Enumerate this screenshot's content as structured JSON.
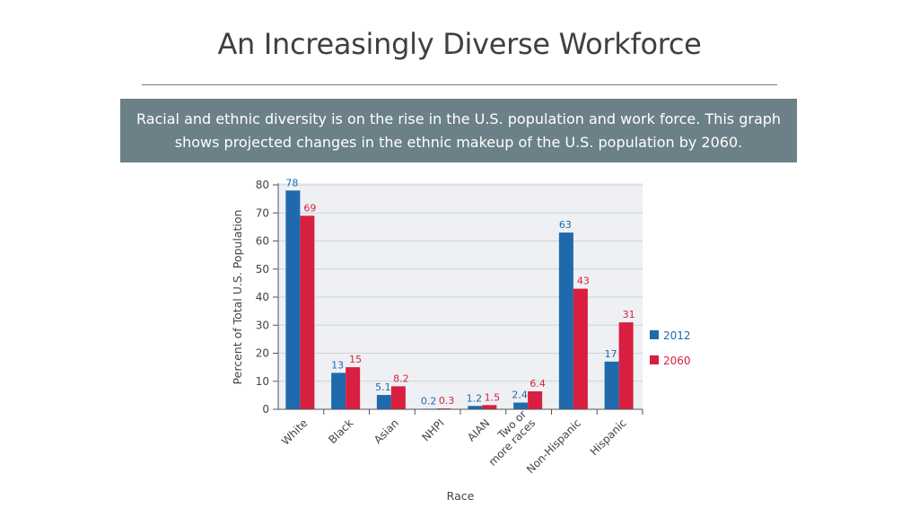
{
  "slide": {
    "title": "An Increasingly Diverse Workforce",
    "caption": "Racial and ethnic diversity is on the rise in the U.S. population and work force. This graph shows projected changes in the ethnic makeup of the U.S. population by 2060."
  },
  "chart_data": {
    "type": "bar",
    "xlabel": "Race",
    "ylabel": "Percent of Total U.S. Population",
    "ylim": [
      0,
      80
    ],
    "yticks": [
      0,
      10,
      20,
      30,
      40,
      50,
      60,
      70,
      80
    ],
    "grid": true,
    "legend_position": "right",
    "categories": [
      [
        "White"
      ],
      [
        "Black"
      ],
      [
        "Asian"
      ],
      [
        "NHPI"
      ],
      [
        "AIAN"
      ],
      [
        "Two or",
        "more races"
      ],
      [
        "Non-Hispanic"
      ],
      [
        "Hispanic"
      ]
    ],
    "series": [
      {
        "name": "2012",
        "color": "#1f6aad",
        "values": [
          78,
          13,
          5.1,
          0.2,
          1.2,
          2.4,
          63,
          17
        ],
        "labels": [
          "78",
          "13",
          "5.1",
          "0.2",
          "1.2",
          "2.4",
          "63",
          "17"
        ]
      },
      {
        "name": "2060",
        "color": "#d81f3f",
        "values": [
          69,
          15,
          8.2,
          0.3,
          1.5,
          6.4,
          43,
          31
        ],
        "labels": [
          "69",
          "15",
          "8.2",
          "0.3",
          "1.5",
          "6.4",
          "43",
          "31"
        ]
      }
    ]
  }
}
